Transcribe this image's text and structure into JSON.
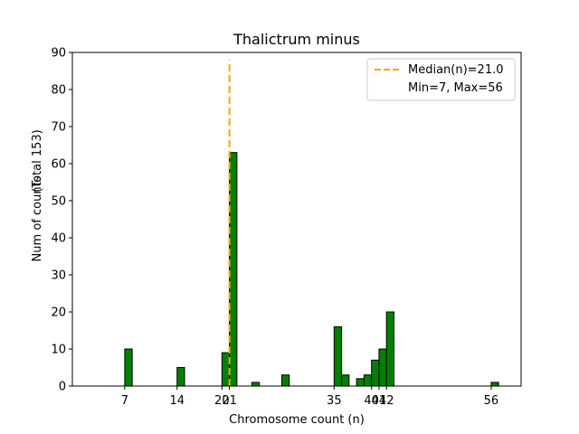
{
  "chart_data": {
    "type": "bar",
    "title": "Thalictrum minus",
    "xlabel": "Chromosome count (n)",
    "ylabel": "Num of counts",
    "ylabel_secondary": "(Total 153)",
    "xlim": [
      0,
      60
    ],
    "ylim": [
      0,
      90
    ],
    "yticks": [
      0,
      10,
      20,
      30,
      40,
      50,
      60,
      70,
      80,
      90
    ],
    "xticks": [
      7,
      14,
      20,
      21,
      35,
      40,
      41,
      42,
      56
    ],
    "bin_width": 1,
    "bars": [
      {
        "x": 7,
        "count": 10
      },
      {
        "x": 14,
        "count": 5
      },
      {
        "x": 20,
        "count": 9
      },
      {
        "x": 21,
        "count": 63
      },
      {
        "x": 24,
        "count": 1
      },
      {
        "x": 28,
        "count": 3
      },
      {
        "x": 35,
        "count": 16
      },
      {
        "x": 36,
        "count": 3
      },
      {
        "x": 38,
        "count": 2
      },
      {
        "x": 39,
        "count": 3
      },
      {
        "x": 40,
        "count": 7
      },
      {
        "x": 41,
        "count": 10
      },
      {
        "x": 42,
        "count": 20
      },
      {
        "x": 56,
        "count": 1
      }
    ],
    "bar_color": "#008000",
    "median": 21.0,
    "median_color": "#FFA500",
    "legend": {
      "placement": "top-right",
      "entries": [
        "Median(n)=21.0",
        "Min=7, Max=56"
      ]
    }
  }
}
